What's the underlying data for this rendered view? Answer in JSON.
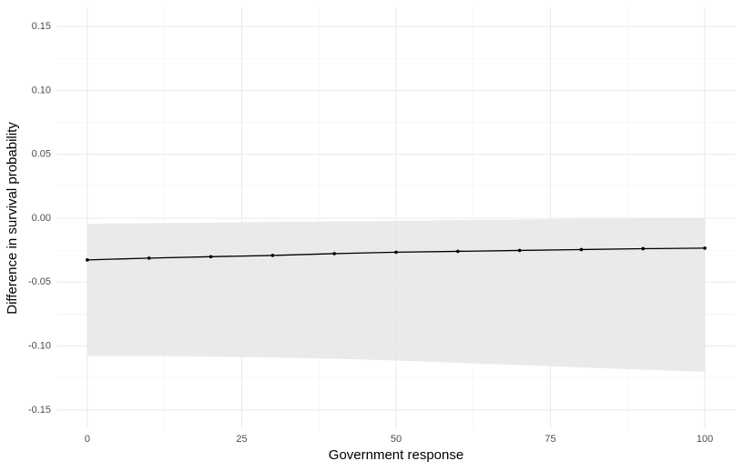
{
  "chart_data": {
    "type": "line",
    "x_label": "Government response",
    "y_label": "Difference in survival probability",
    "x": [
      0,
      10,
      20,
      30,
      40,
      50,
      60,
      70,
      80,
      90,
      100
    ],
    "values": [
      -0.0326,
      -0.0312,
      -0.0301,
      -0.0291,
      -0.0277,
      -0.0266,
      -0.0259,
      -0.0252,
      -0.0245,
      -0.0238,
      -0.0234
    ],
    "lower": [
      -0.1078,
      -0.1078,
      -0.1082,
      -0.1089,
      -0.1099,
      -0.1113,
      -0.1131,
      -0.1149,
      -0.1167,
      -0.1184,
      -0.1202
    ],
    "upper": [
      -0.0043,
      -0.0039,
      -0.0035,
      -0.0028,
      -0.0025,
      -0.0021,
      -0.0014,
      -0.0011,
      -0.0004,
      0.0,
      0.0
    ],
    "color": "#000000",
    "band_color": "#e6e6e6",
    "xlim": [
      -5,
      105
    ],
    "ylim": [
      -0.165,
      0.165
    ],
    "xticks": [
      0,
      25,
      50,
      75,
      100
    ],
    "yticks": [
      {
        "value": -0.15,
        "label": "-0.15"
      },
      {
        "value": -0.1,
        "label": "-0.10"
      },
      {
        "value": -0.05,
        "label": "-0.05"
      },
      {
        "value": 0,
        "label": "0.00"
      },
      {
        "value": 0.05,
        "label": "0.05"
      },
      {
        "value": 0.1,
        "label": "0.10"
      },
      {
        "value": 0.15,
        "label": "0.15"
      }
    ],
    "grid": true
  }
}
